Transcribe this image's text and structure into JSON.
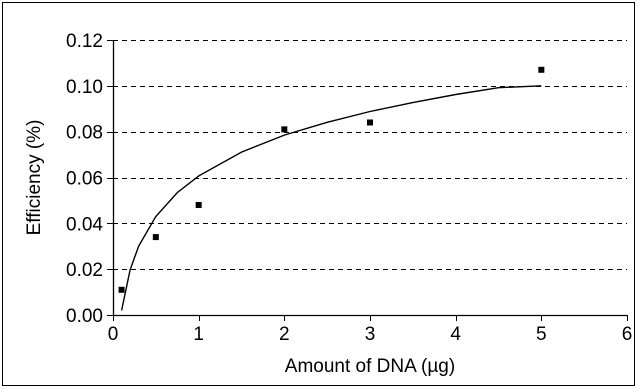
{
  "chart_data": {
    "type": "scatter",
    "title": "",
    "xlabel": "Amount of DNA (µg)",
    "ylabel": "Efficiency (%)",
    "xlim": [
      0,
      6
    ],
    "ylim": [
      0,
      0.12
    ],
    "x_ticks": [
      0,
      1,
      2,
      3,
      4,
      5,
      6
    ],
    "y_ticks": [
      0,
      0.02,
      0.04,
      0.06,
      0.08,
      0.1,
      0.12
    ],
    "x_tick_labels": [
      "0",
      "1",
      "2",
      "3",
      "4",
      "5",
      "6"
    ],
    "y_tick_labels": [
      "0.00",
      "0.02",
      "0.04",
      "0.06",
      "0.08",
      "0.10",
      "0.12"
    ],
    "grid": "horizontal-dashed",
    "legend": "none",
    "series": [
      {
        "type": "scatter",
        "marker": "square",
        "color": "#000000",
        "points": [
          {
            "x": 0.1,
            "y": 0.011
          },
          {
            "x": 0.5,
            "y": 0.034
          },
          {
            "x": 1,
            "y": 0.048
          },
          {
            "x": 2,
            "y": 0.081
          },
          {
            "x": 3,
            "y": 0.084
          },
          {
            "x": 5,
            "y": 0.107
          }
        ]
      },
      {
        "type": "line",
        "trend": "logarithmic",
        "color": "#000000",
        "points": [
          {
            "x": 0.1,
            "y": 0.002
          },
          {
            "x": 0.2,
            "y": 0.0197
          },
          {
            "x": 0.3,
            "y": 0.0301
          },
          {
            "x": 0.5,
            "y": 0.043
          },
          {
            "x": 0.75,
            "y": 0.0534
          },
          {
            "x": 1,
            "y": 0.0607
          },
          {
            "x": 1.5,
            "y": 0.0711
          },
          {
            "x": 2,
            "y": 0.0785
          },
          {
            "x": 2.5,
            "y": 0.0841
          },
          {
            "x": 3,
            "y": 0.0888
          },
          {
            "x": 3.5,
            "y": 0.0927
          },
          {
            "x": 4,
            "y": 0.0962
          },
          {
            "x": 4.5,
            "y": 0.0992
          },
          {
            "x": 5,
            "y": 0.1
          }
        ]
      }
    ]
  }
}
